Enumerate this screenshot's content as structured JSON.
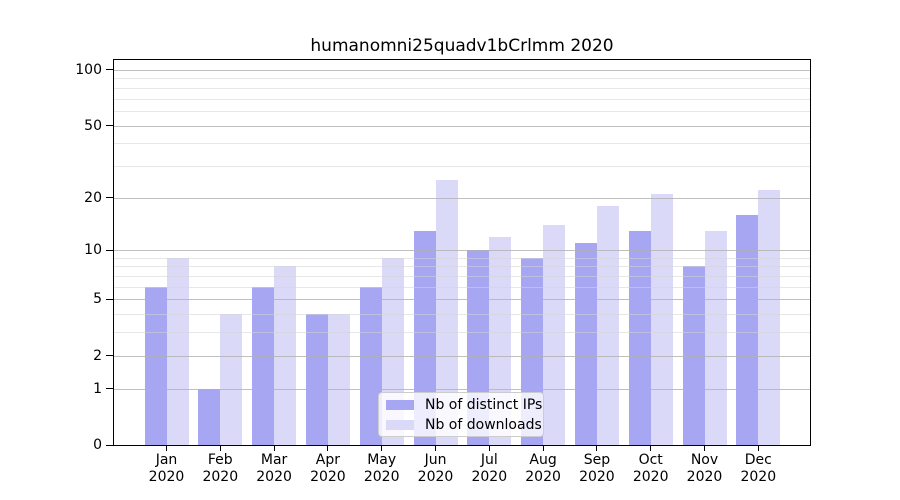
{
  "chart_data": {
    "type": "bar",
    "title": "humanomni25quadv1bCrlmm 2020",
    "months": [
      "Jan",
      "Feb",
      "Mar",
      "Apr",
      "May",
      "Jun",
      "Jul",
      "Aug",
      "Sep",
      "Oct",
      "Nov",
      "Dec"
    ],
    "year": "2020",
    "series": [
      {
        "name": "Nb of distinct IPs",
        "color": "#a6a6f3",
        "values": [
          6,
          1,
          6,
          4,
          6,
          13,
          10,
          9,
          11,
          13,
          8,
          16
        ]
      },
      {
        "name": "Nb of downloads",
        "color": "#dadaf8",
        "values": [
          9,
          4,
          8,
          4,
          9,
          25,
          12,
          14,
          18,
          21,
          13,
          22
        ]
      }
    ],
    "yscale": "log1p",
    "ylim": [
      0,
      113
    ],
    "y_major_ticks": [
      100,
      50,
      20,
      10,
      5,
      2,
      1,
      0
    ],
    "y_minor_gridlines": [
      3,
      4,
      6,
      7,
      8,
      9,
      30,
      40,
      60,
      70,
      80,
      90
    ],
    "grid": true,
    "legend_position": "lower center"
  },
  "colors": {
    "axis": "#000000",
    "grid_major": "#b0b0b0",
    "grid_minor": "#d4d4d4",
    "legend_border": "#cccccc",
    "legend_background": "#ffffff"
  }
}
